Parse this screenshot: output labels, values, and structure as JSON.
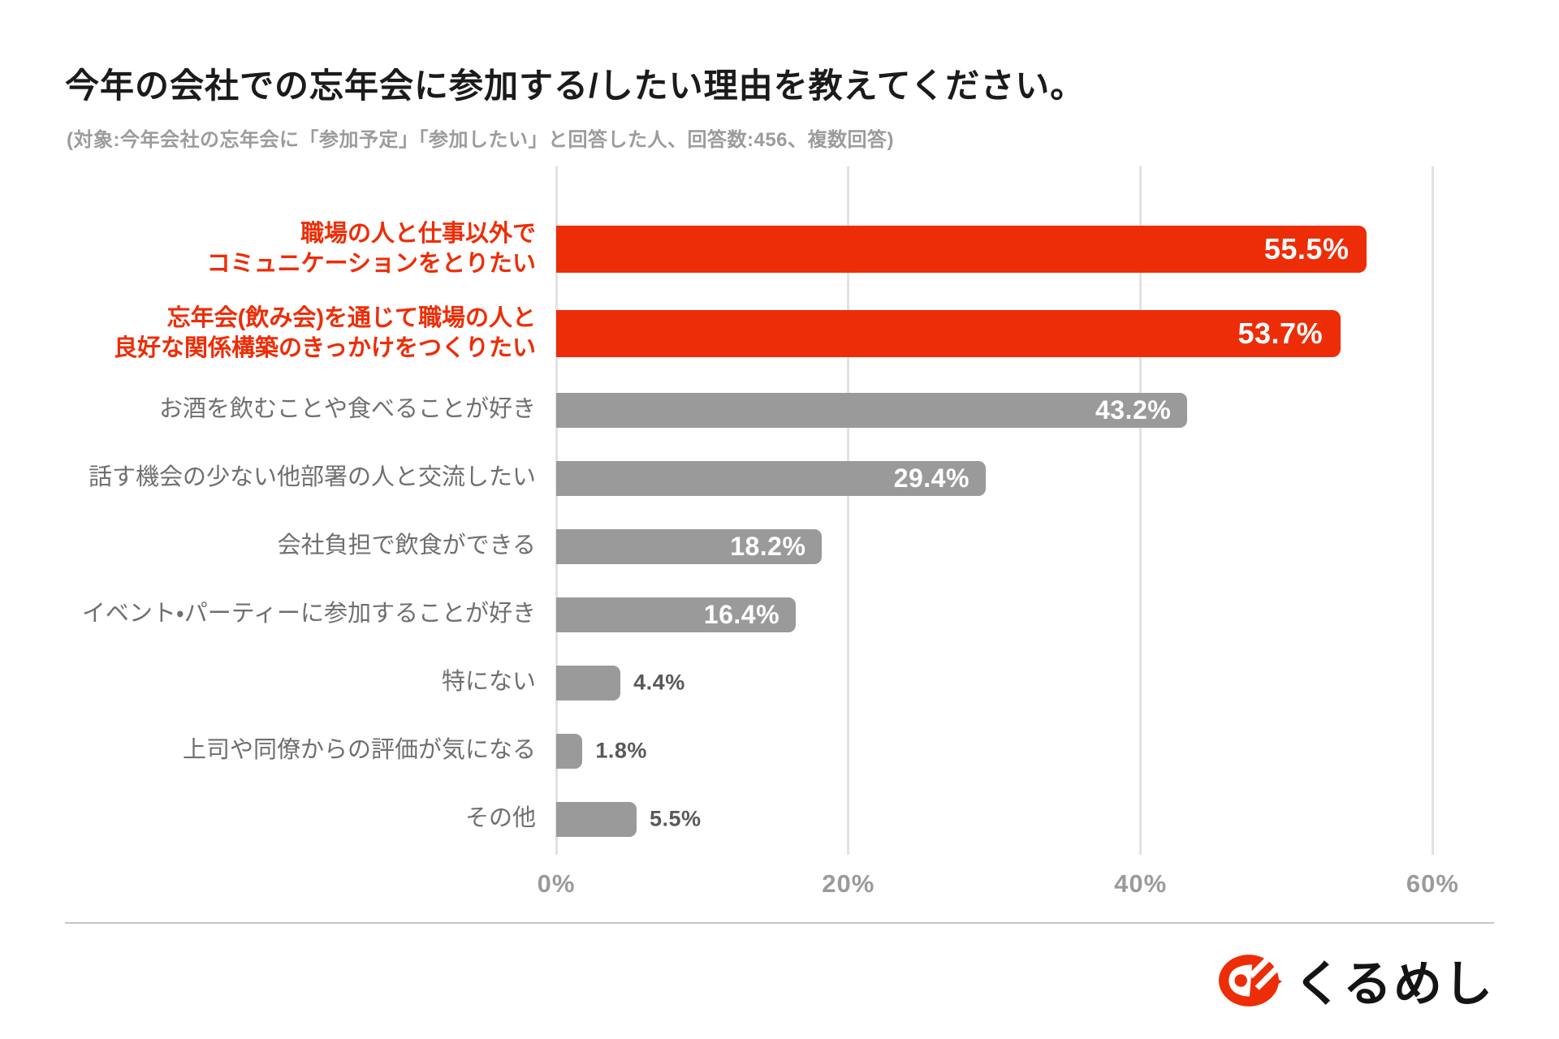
{
  "page": {
    "title": "今年の会社での忘年会に参加する/したい理由を教えてください。",
    "subtitle": "(対象:今年会社の忘年会に「参加予定」「参加したい」と回答した人、回答数:456、複数回答)"
  },
  "colors": {
    "bar_red": "#ED2D07",
    "bar_gray": "#9A9A9A",
    "label_gray": "#6F6F6F",
    "value_outside_gray": "#595959",
    "axis_tick_gray": "#9B9B9B",
    "gridline_gray": "#E2E2E2",
    "title_black": "#1B1B1B",
    "subtitle_gray": "#9C9C9C",
    "divider_gray": "#C6C6C6",
    "logo_black": "#141414"
  },
  "chart_data": {
    "type": "bar",
    "orientation": "horizontal",
    "value_unit": "%",
    "xlim": [
      0,
      60
    ],
    "grid": "vertical-only",
    "legend": "none",
    "x_ticks": [
      {
        "value": 0,
        "label": "0%"
      },
      {
        "value": 20,
        "label": "20%"
      },
      {
        "value": 40,
        "label": "40%"
      },
      {
        "value": 60,
        "label": "60%"
      }
    ],
    "categories": [
      "職場の人と仕事以外でコミュニケーションをとりたい",
      "忘年会(飲み会)を通じて職場の人と良好な関係構築のきっかけをつくりたい",
      "お酒を飲むことや食べることが好き",
      "話す機会の少ない他部署の人と交流したい",
      "会社負担で飲食ができる",
      "イベント・パーティーに参加することが好き",
      "特にない",
      "上司や同僚からの評価が気になる",
      "その他"
    ],
    "values": [
      55.5,
      53.7,
      43.2,
      29.4,
      18.2,
      16.4,
      4.4,
      1.8,
      5.5
    ],
    "items": [
      {
        "label_lines": [
          "職場の人と仕事以外で",
          "コミュニケーションをとりたい"
        ],
        "value": 55.5,
        "value_label": "55.5%",
        "highlight": true,
        "value_label_position": "inside"
      },
      {
        "label_lines": [
          "忘年会(飲み会)を通じて職場の人と",
          "良好な関係構築のきっかけをつくりたい"
        ],
        "value": 53.7,
        "value_label": "53.7%",
        "highlight": true,
        "value_label_position": "inside"
      },
      {
        "label_lines": [
          "お酒を飲むことや食べることが好き"
        ],
        "value": 43.2,
        "value_label": "43.2%",
        "highlight": false,
        "value_label_position": "inside"
      },
      {
        "label_lines": [
          "話す機会の少ない他部署の人と交流したい"
        ],
        "value": 29.4,
        "value_label": "29.4%",
        "highlight": false,
        "value_label_position": "inside"
      },
      {
        "label_lines": [
          "会社負担で飲食ができる"
        ],
        "value": 18.2,
        "value_label": "18.2%",
        "highlight": false,
        "value_label_position": "inside"
      },
      {
        "label_lines": [
          "イベント・パーティーに参加することが好き"
        ],
        "value": 16.4,
        "value_label": "16.4%",
        "highlight": false,
        "value_label_position": "inside"
      },
      {
        "label_lines": [
          "特にない"
        ],
        "value": 4.4,
        "value_label": "4.4%",
        "highlight": false,
        "value_label_position": "outside"
      },
      {
        "label_lines": [
          "上司や同僚からの評価が気になる"
        ],
        "value": 1.8,
        "value_label": "1.8%",
        "highlight": false,
        "value_label_position": "outside"
      },
      {
        "label_lines": [
          "その他"
        ],
        "value": 5.5,
        "value_label": "5.5%",
        "highlight": false,
        "value_label_position": "outside"
      }
    ]
  },
  "footer": {
    "logo_text": "くるめし"
  }
}
